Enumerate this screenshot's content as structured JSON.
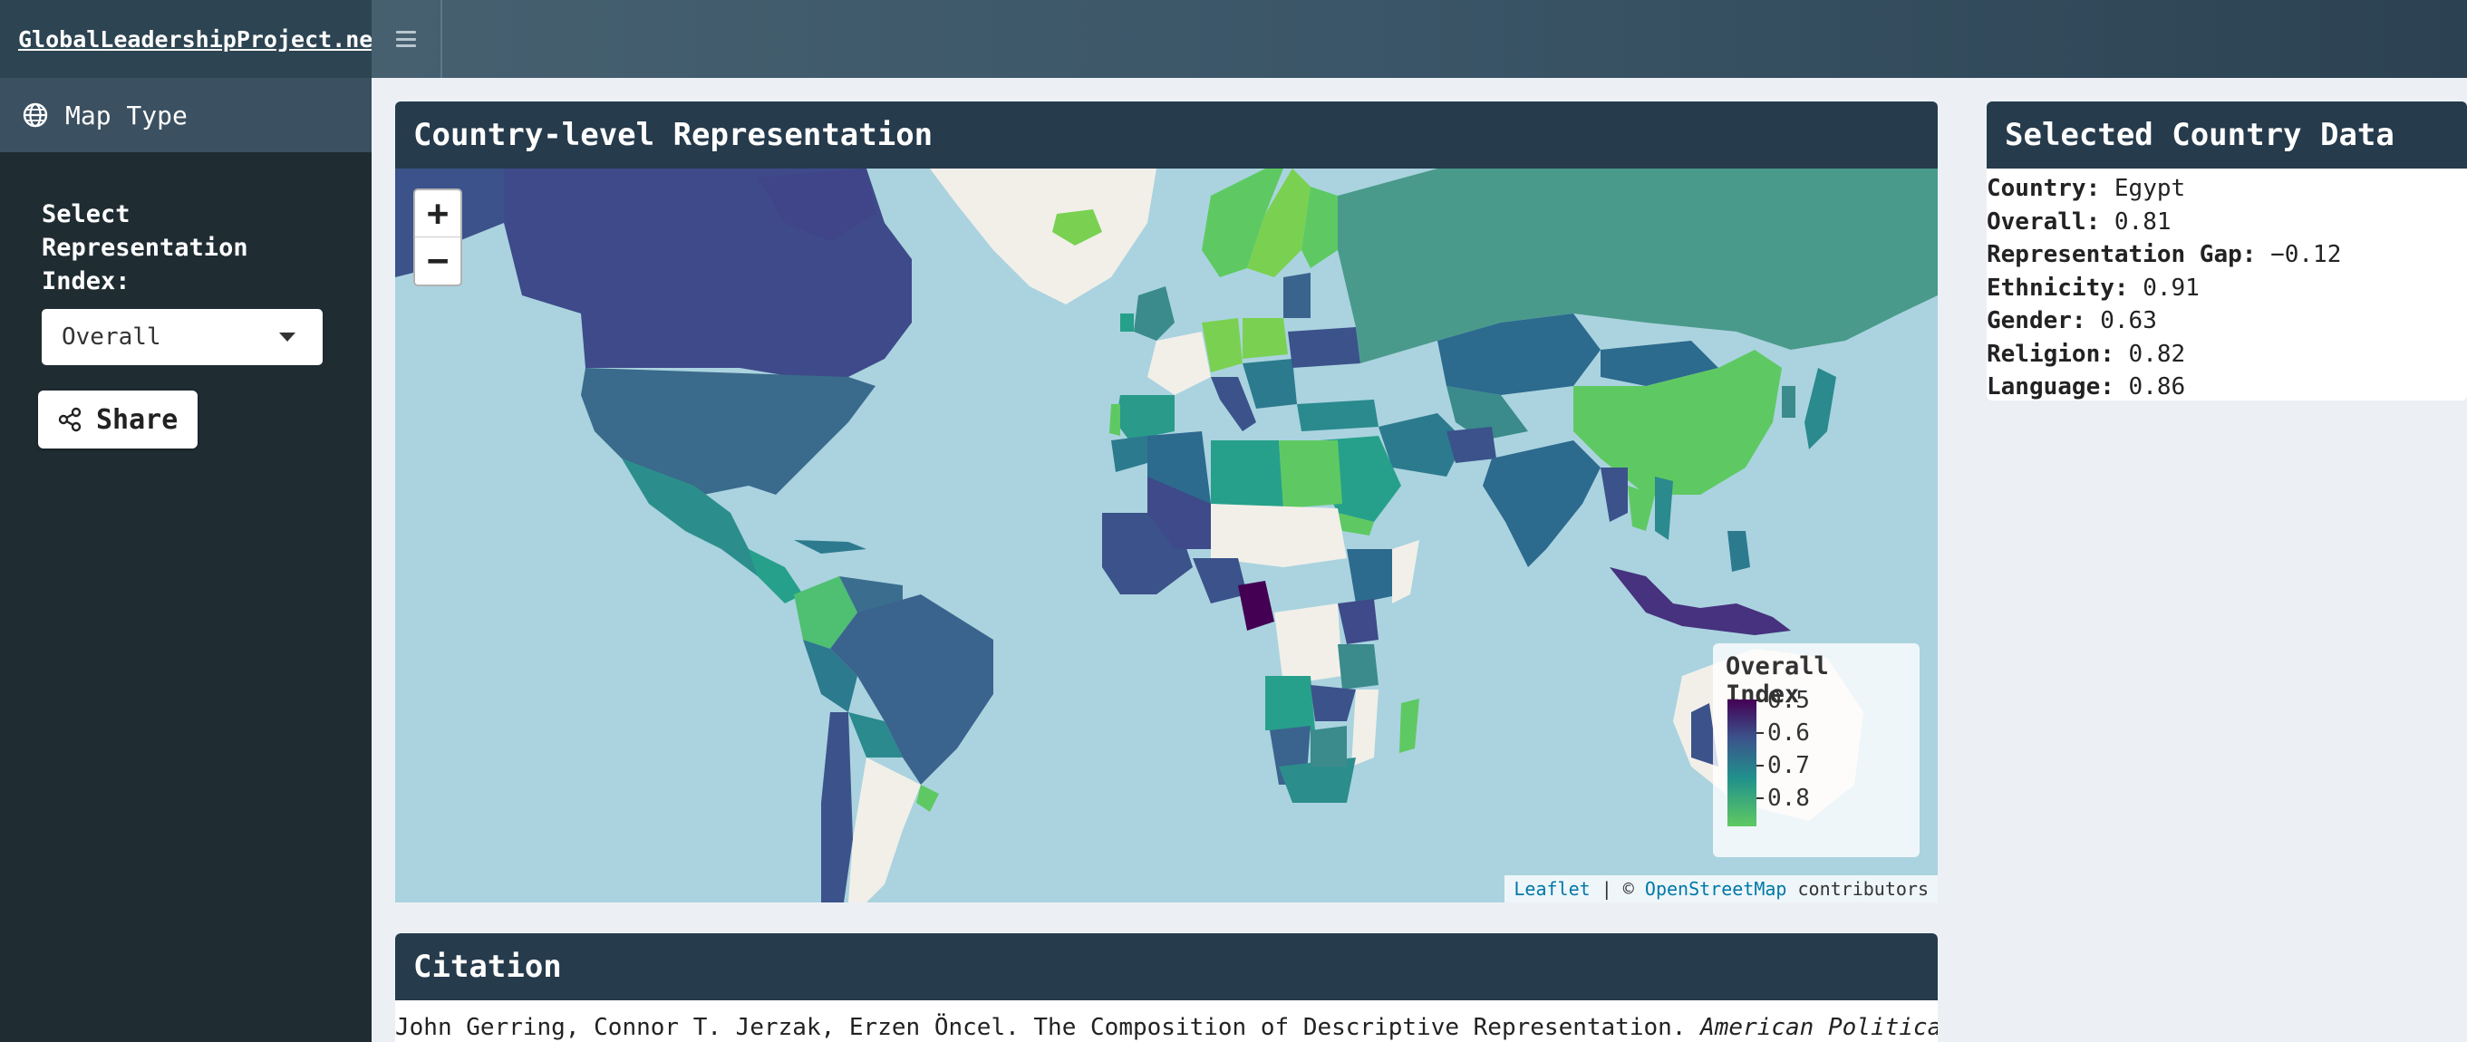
{
  "header": {
    "brand": "GlobalLeadershipProject.net",
    "toggle_icon": "hamburger-icon"
  },
  "sidebar": {
    "menu_item": {
      "icon": "globe-icon",
      "label": "Map Type"
    },
    "select_label": "Select Representation Index:",
    "select_value": "Overall",
    "share_label": "Share",
    "share_icon": "share-icon"
  },
  "map_panel": {
    "title": "Country-level Representation",
    "zoom_in": "+",
    "zoom_out": "−",
    "legend": {
      "title": "Overall Index",
      "ticks": [
        "0.5",
        "0.6",
        "0.7",
        "0.8"
      ],
      "colors": [
        "#440154",
        "#3b528b",
        "#21918c",
        "#5ec962"
      ]
    },
    "attribution": {
      "leaflet": "Leaflet",
      "separator": " | © ",
      "osm": "OpenStreetMap",
      "suffix": " contributors"
    }
  },
  "country_panel": {
    "title": "Selected Country Data",
    "rows": [
      {
        "key": "Country:",
        "value": "Egypt"
      },
      {
        "key": "Overall:",
        "value": "0.81"
      },
      {
        "key": "Representation Gap:",
        "value": "−0.12"
      },
      {
        "key": "Ethnicity:",
        "value": "0.91"
      },
      {
        "key": "Gender:",
        "value": "0.63"
      },
      {
        "key": "Religion:",
        "value": "0.82"
      },
      {
        "key": "Language:",
        "value": "0.86"
      }
    ]
  },
  "citation_panel": {
    "title": "Citation",
    "text": "John Gerring, Connor T. Jerzak, Erzen Öncel. The Composition of Descriptive Representation. ",
    "journal": "American Political"
  }
}
